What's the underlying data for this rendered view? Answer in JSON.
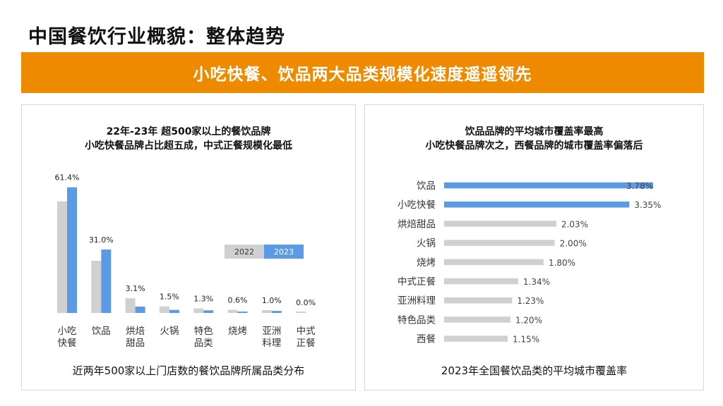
{
  "page": {
    "title": "中国餐饮行业概貌：整体趋势",
    "banner": "小吃快餐、饮品两大品类规模化速度遥遥领先",
    "colors": {
      "accent": "#EE8A00",
      "series_2022": "#D0D0D0",
      "series_2023": "#5B9BE5"
    }
  },
  "left_panel": {
    "heading_line1": "22年-23年  超500家以上的餐饮品牌",
    "heading_line2": "小吃快餐品牌占比超五成，中式正餐规模化最低",
    "caption": "近两年500家以上门店数的餐饮品牌所属品类分布"
  },
  "right_panel": {
    "heading_line1": "饮品品牌的平均城市覆盖率最高",
    "heading_line2": "小吃快餐品牌次之，西餐品牌的城市覆盖率偏落后",
    "caption": "2023年全国餐饮品类的平均城市覆盖率"
  },
  "chart_data": [
    {
      "type": "bar",
      "orientation": "vertical",
      "categories": [
        "小吃\n快餐",
        "饮品",
        "烘焙\n甜品",
        "火锅",
        "特色\n品类",
        "烧烤",
        "亚洲\n料理",
        "中式\n正餐"
      ],
      "series": [
        {
          "name": "2022",
          "values": [
            54.5,
            25.5,
            7.2,
            3.2,
            2.2,
            1.5,
            1.4,
            0.3
          ]
        },
        {
          "name": "2023",
          "values": [
            61.4,
            31.0,
            3.1,
            1.5,
            1.3,
            0.6,
            1.0,
            0.0
          ]
        }
      ],
      "data_labels": [
        "61.4%",
        "31.0%",
        "3.1%",
        "1.5%",
        "1.3%",
        "0.6%",
        "1.0%",
        "0.0%"
      ],
      "ylim": [
        0,
        62
      ],
      "legend": [
        "2022",
        "2023"
      ],
      "legend_position": "right",
      "grid": false
    },
    {
      "type": "bar",
      "orientation": "horizontal",
      "categories": [
        "饮品",
        "小吃快餐",
        "烘焙甜品",
        "火锅",
        "烧烤",
        "中式正餐",
        "亚洲料理",
        "特色品类",
        "西餐"
      ],
      "values": [
        3.78,
        3.35,
        2.03,
        2.0,
        1.8,
        1.34,
        1.23,
        1.2,
        1.15
      ],
      "data_labels": [
        "3.78%",
        "3.35%",
        "2.03%",
        "2.00%",
        "1.80%",
        "1.34%",
        "1.23%",
        "1.20%",
        "1.15%"
      ],
      "highlight_count": 2,
      "xlim": [
        0,
        3.78
      ],
      "grid": false
    }
  ]
}
